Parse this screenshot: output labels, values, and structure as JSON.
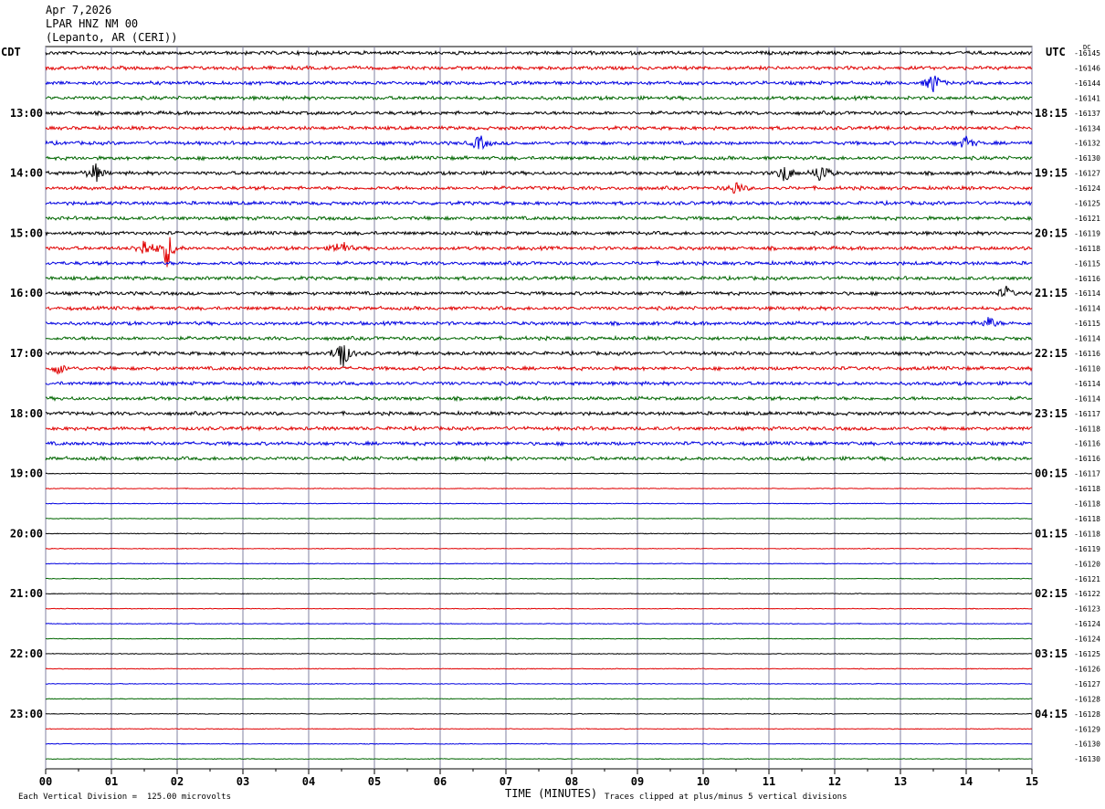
{
  "header": {
    "date": "Apr 7,2026",
    "station": "LPAR HNZ NM 00",
    "location": "(Lepanto, AR (CERI))"
  },
  "labels": {
    "left_tz": "CDT",
    "right_tz": "UTC",
    "dc": "DC",
    "xlabel": "TIME (MINUTES)",
    "division_note": "Each Vertical Division =  125.00 microvolts",
    "clip_note": "Traces clipped at plus/minus 5 vertical divisions"
  },
  "colors": {
    "trace_cycle": [
      "#000000",
      "#e00000",
      "#0000e0",
      "#006600"
    ],
    "grid": "#8080a0",
    "axis": "#000000"
  },
  "chart_data": {
    "type": "line",
    "title": "",
    "x_ticks": [
      "00",
      "01",
      "02",
      "03",
      "04",
      "05",
      "06",
      "07",
      "08",
      "09",
      "10",
      "11",
      "12",
      "13",
      "14",
      "15"
    ],
    "xlim": [
      0,
      15
    ],
    "trace_minutes": 15,
    "active_trace_count": 28,
    "left_hour_labels": [
      {
        "row": 4,
        "text": "13:00"
      },
      {
        "row": 8,
        "text": "14:00"
      },
      {
        "row": 12,
        "text": "15:00"
      },
      {
        "row": 16,
        "text": "16:00"
      },
      {
        "row": 20,
        "text": "17:00"
      },
      {
        "row": 24,
        "text": "18:00"
      },
      {
        "row": 28,
        "text": "19:00"
      },
      {
        "row": 32,
        "text": "20:00"
      },
      {
        "row": 36,
        "text": "21:00"
      },
      {
        "row": 40,
        "text": "22:00"
      },
      {
        "row": 44,
        "text": "23:00"
      }
    ],
    "right_hour_labels": [
      {
        "row": 4,
        "text": "18:15"
      },
      {
        "row": 8,
        "text": "19:15"
      },
      {
        "row": 12,
        "text": "20:15"
      },
      {
        "row": 16,
        "text": "21:15"
      },
      {
        "row": 20,
        "text": "22:15"
      },
      {
        "row": 24,
        "text": "23:15"
      },
      {
        "row": 28,
        "text": "00:15"
      },
      {
        "row": 32,
        "text": "01:15"
      },
      {
        "row": 36,
        "text": "02:15"
      },
      {
        "row": 40,
        "text": "03:15"
      },
      {
        "row": 44,
        "text": "04:15"
      }
    ],
    "dc_offsets": [
      "-16145",
      "-16146",
      "-16144",
      "-16141",
      "-16137",
      "-16134",
      "-16132",
      "-16130",
      "-16127",
      "-16124",
      "-16125",
      "-16121",
      "-16119",
      "-16118",
      "-16115",
      "-16116",
      "-16114",
      "-16114",
      "-16115",
      "-16114",
      "-16116",
      "-16110",
      "-16114",
      "-16114",
      "-16117",
      "-16118",
      "-16116",
      "-16116",
      "-16117",
      "-16118",
      "-16118",
      "-16118",
      "-16118",
      "-16119",
      "-16120",
      "-16121",
      "-16122",
      "-16123",
      "-16124",
      "-16124",
      "-16125",
      "-16126",
      "-16127",
      "-16128",
      "-16128",
      "-16129",
      "-16130",
      "-16130"
    ],
    "events": [
      {
        "trace": 2,
        "minute": 13.5,
        "amp": 2.2
      },
      {
        "trace": 6,
        "minute": 6.6,
        "amp": 1.6
      },
      {
        "trace": 6,
        "minute": 14.0,
        "amp": 1.4
      },
      {
        "trace": 8,
        "minute": 0.75,
        "amp": 2.0
      },
      {
        "trace": 8,
        "minute": 11.25,
        "amp": 2.0
      },
      {
        "trace": 8,
        "minute": 11.8,
        "amp": 2.4
      },
      {
        "trace": 9,
        "minute": 10.5,
        "amp": 1.4
      },
      {
        "trace": 13,
        "minute": 1.5,
        "amp": 2.0
      },
      {
        "trace": 13,
        "minute": 1.85,
        "amp": 3.6
      },
      {
        "trace": 13,
        "minute": 4.5,
        "amp": 1.8
      },
      {
        "trace": 16,
        "minute": 14.6,
        "amp": 1.3
      },
      {
        "trace": 18,
        "minute": 14.35,
        "amp": 1.3
      },
      {
        "trace": 20,
        "minute": 4.5,
        "amp": 3.8
      },
      {
        "trace": 21,
        "minute": 0.2,
        "amp": 1.1
      }
    ]
  }
}
